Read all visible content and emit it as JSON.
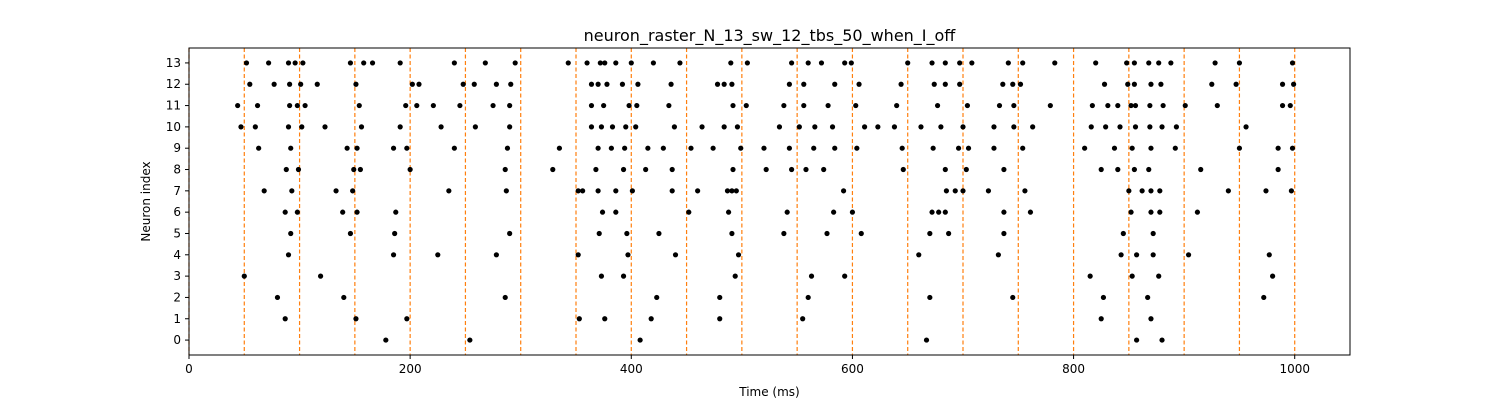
{
  "chart_data": {
    "type": "scatter",
    "title": "neuron_raster_N_13_sw_12_tbs_50_when_I_off",
    "xlabel": "Time (ms)",
    "ylabel": "Neuron index",
    "xlim": [
      0,
      1050
    ],
    "ylim": [
      -0.7,
      13.7
    ],
    "xticks": [
      0,
      200,
      400,
      600,
      800,
      1000
    ],
    "yticks": [
      0,
      1,
      2,
      3,
      4,
      5,
      6,
      7,
      8,
      9,
      10,
      11,
      12,
      13
    ],
    "grid": false,
    "marker_color": "#000000",
    "vline_color": "#ff7f0e",
    "vlines": [
      0,
      50,
      100,
      150,
      200,
      250,
      300,
      350,
      400,
      450,
      500,
      550,
      600,
      650,
      700,
      750,
      800,
      850,
      900,
      950,
      1000
    ],
    "spikes": [
      {
        "neuron": 0,
        "times": [
          178,
          254,
          408,
          667,
          857,
          880
        ]
      },
      {
        "neuron": 1,
        "times": [
          87,
          151,
          197,
          353,
          376,
          418,
          480,
          555,
          825,
          870
        ]
      },
      {
        "neuron": 2,
        "times": [
          80,
          140,
          286,
          423,
          480,
          560,
          670,
          745,
          827,
          867,
          972
        ]
      },
      {
        "neuron": 3,
        "times": [
          50,
          119,
          373,
          393,
          494,
          563,
          593,
          815,
          853,
          877,
          980
        ]
      },
      {
        "neuron": 4,
        "times": [
          90,
          185,
          225,
          278,
          352,
          397,
          440,
          497,
          660,
          732,
          843,
          857,
          872,
          904,
          977
        ]
      },
      {
        "neuron": 5,
        "times": [
          92,
          146,
          186,
          290,
          371,
          396,
          425,
          491,
          538,
          577,
          608,
          670,
          687,
          737,
          845,
          872
        ]
      },
      {
        "neuron": 6,
        "times": [
          87,
          98,
          139,
          152,
          187,
          374,
          386,
          452,
          488,
          541,
          583,
          600,
          672,
          678,
          684,
          737,
          761,
          852,
          870,
          878,
          912
        ]
      },
      {
        "neuron": 7,
        "times": [
          68,
          93,
          133,
          148,
          235,
          287,
          352,
          356,
          370,
          386,
          401,
          437,
          460,
          487,
          491,
          495,
          592,
          685,
          693,
          700,
          723,
          756,
          850,
          862,
          870,
          878,
          940,
          974,
          997
        ]
      },
      {
        "neuron": 8,
        "times": [
          88,
          99,
          149,
          155,
          200,
          286,
          329,
          368,
          393,
          413,
          437,
          492,
          522,
          545,
          558,
          574,
          646,
          684,
          703,
          737,
          825,
          840,
          855,
          868,
          915,
          985
        ]
      },
      {
        "neuron": 9,
        "times": [
          63,
          92,
          143,
          152,
          185,
          197,
          240,
          288,
          335,
          370,
          382,
          394,
          415,
          429,
          454,
          474,
          499,
          520,
          543,
          565,
          584,
          604,
          645,
          673,
          696,
          705,
          728,
          754,
          810,
          837,
          853,
          870,
          892,
          950,
          985,
          998
        ]
      },
      {
        "neuron": 10,
        "times": [
          47,
          60,
          90,
          102,
          123,
          156,
          191,
          228,
          259,
          290,
          364,
          373,
          383,
          395,
          404,
          439,
          464,
          484,
          496,
          534,
          552,
          566,
          582,
          611,
          623,
          638,
          662,
          680,
          700,
          728,
          746,
          763,
          816,
          829,
          842,
          856,
          869,
          880,
          893,
          956
        ]
      },
      {
        "neuron": 11,
        "times": [
          44,
          62,
          91,
          98,
          105,
          154,
          196,
          206,
          221,
          245,
          275,
          290,
          364,
          375,
          398,
          405,
          434,
          492,
          504,
          538,
          556,
          578,
          603,
          640,
          677,
          704,
          733,
          746,
          779,
          817,
          831,
          840,
          852,
          856,
          869,
          881,
          901,
          930,
          989,
          996
        ]
      },
      {
        "neuron": 12,
        "times": [
          55,
          77,
          91,
          101,
          116,
          151,
          202,
          208,
          248,
          258,
          278,
          291,
          364,
          370,
          378,
          392,
          406,
          436,
          478,
          484,
          491,
          543,
          556,
          584,
          606,
          644,
          674,
          684,
          697,
          736,
          745,
          752,
          828,
          849,
          855,
          870,
          879,
          925,
          947,
          989,
          999
        ]
      },
      {
        "neuron": 13,
        "times": [
          52,
          72,
          90,
          96,
          103,
          146,
          158,
          166,
          191,
          240,
          268,
          295,
          343,
          360,
          372,
          376,
          386,
          400,
          420,
          444,
          490,
          505,
          545,
          560,
          572,
          593,
          599,
          650,
          672,
          684,
          697,
          708,
          741,
          754,
          783,
          820,
          848,
          855,
          868,
          877,
          888,
          928,
          950,
          998
        ]
      }
    ]
  }
}
